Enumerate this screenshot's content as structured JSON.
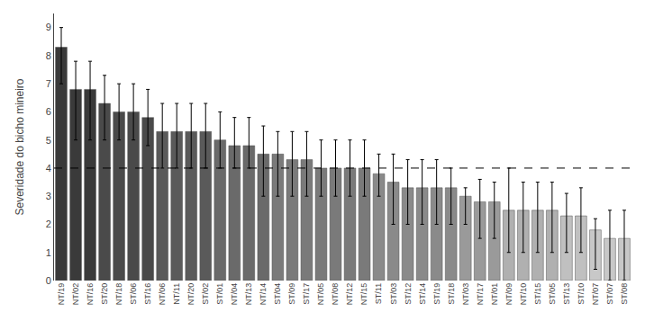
{
  "chart_data": {
    "type": "bar",
    "categories": [
      "NT/19",
      "NT/02",
      "NT/16",
      "ST/20",
      "NT/18",
      "ST/06",
      "ST/16",
      "NT/06",
      "NT/11",
      "NT/20",
      "ST/02",
      "ST/01",
      "NT/04",
      "NT/13",
      "NT/14",
      "ST/04",
      "ST/09",
      "ST/17",
      "NT/05",
      "NT/08",
      "NT/12",
      "NT/15",
      "ST/11",
      "ST/03",
      "ST/12",
      "ST/14",
      "ST/19",
      "ST/18",
      "NT/03",
      "NT/17",
      "NT/01",
      "NT/09",
      "NT/10",
      "ST/15",
      "ST/05",
      "ST/13",
      "ST/10",
      "NT/07",
      "ST/07",
      "ST/08"
    ],
    "values": [
      8.3,
      6.8,
      6.8,
      6.3,
      6.0,
      6.0,
      5.8,
      5.3,
      5.3,
      5.3,
      5.3,
      5.0,
      4.8,
      4.8,
      4.5,
      4.5,
      4.3,
      4.3,
      4.0,
      4.0,
      4.0,
      4.0,
      3.8,
      3.5,
      3.3,
      3.3,
      3.3,
      3.3,
      3.0,
      2.8,
      2.8,
      2.5,
      2.5,
      2.5,
      2.5,
      2.3,
      2.3,
      1.8,
      1.5,
      1.5
    ],
    "errors_up": [
      0.7,
      1.0,
      1.0,
      1.0,
      1.0,
      1.0,
      1.0,
      1.0,
      1.0,
      1.0,
      1.0,
      1.0,
      1.0,
      1.0,
      1.0,
      0.8,
      1.0,
      1.0,
      1.0,
      1.0,
      1.0,
      1.0,
      0.7,
      1.0,
      1.0,
      1.0,
      1.0,
      0.7,
      0.3,
      0.8,
      0.7,
      1.5,
      1.0,
      1.0,
      1.0,
      0.8,
      1.0,
      0.4,
      1.0,
      1.0
    ],
    "errors_down": [
      1.3,
      1.8,
      1.8,
      1.3,
      1.0,
      1.0,
      1.0,
      1.3,
      1.3,
      1.3,
      1.3,
      1.0,
      0.8,
      0.8,
      1.5,
      1.5,
      1.3,
      1.3,
      1.0,
      1.0,
      1.0,
      1.0,
      0.8,
      1.5,
      1.3,
      1.3,
      1.3,
      1.3,
      1.0,
      1.3,
      1.3,
      1.5,
      1.5,
      1.5,
      1.5,
      1.3,
      1.3,
      1.4,
      1.5,
      1.5
    ],
    "colors": [
      "#3a3a3a",
      "#3a3a3a",
      "#3a3a3a",
      "#4a4a4a",
      "#4a4a4a",
      "#4a4a4a",
      "#4a4a4a",
      "#5a5a5a",
      "#5a5a5a",
      "#5a5a5a",
      "#5a5a5a",
      "#6a6a6a",
      "#6a6a6a",
      "#6a6a6a",
      "#6a6a6a",
      "#7a7a7a",
      "#7a7a7a",
      "#7a7a7a",
      "#7a7a7a",
      "#7a7a7a",
      "#7a7a7a",
      "#7a7a7a",
      "#8a8a8a",
      "#8a8a8a",
      "#8a8a8a",
      "#8a8a8a",
      "#8a8a8a",
      "#8a8a8a",
      "#9a9a9a",
      "#9a9a9a",
      "#9a9a9a",
      "#b0b0b0",
      "#b0b0b0",
      "#b0b0b0",
      "#b0b0b0",
      "#c0c0c0",
      "#c0c0c0",
      "#c8c8c8",
      "#c8c8c8",
      "#c8c8c8"
    ],
    "ylabel": "Severidade do bicho mineiro",
    "ylim": [
      0,
      9.5
    ],
    "yticks": [
      0,
      1,
      2,
      3,
      4,
      5,
      6,
      7,
      8,
      9
    ],
    "reference_line": 4.0,
    "grid": false
  }
}
